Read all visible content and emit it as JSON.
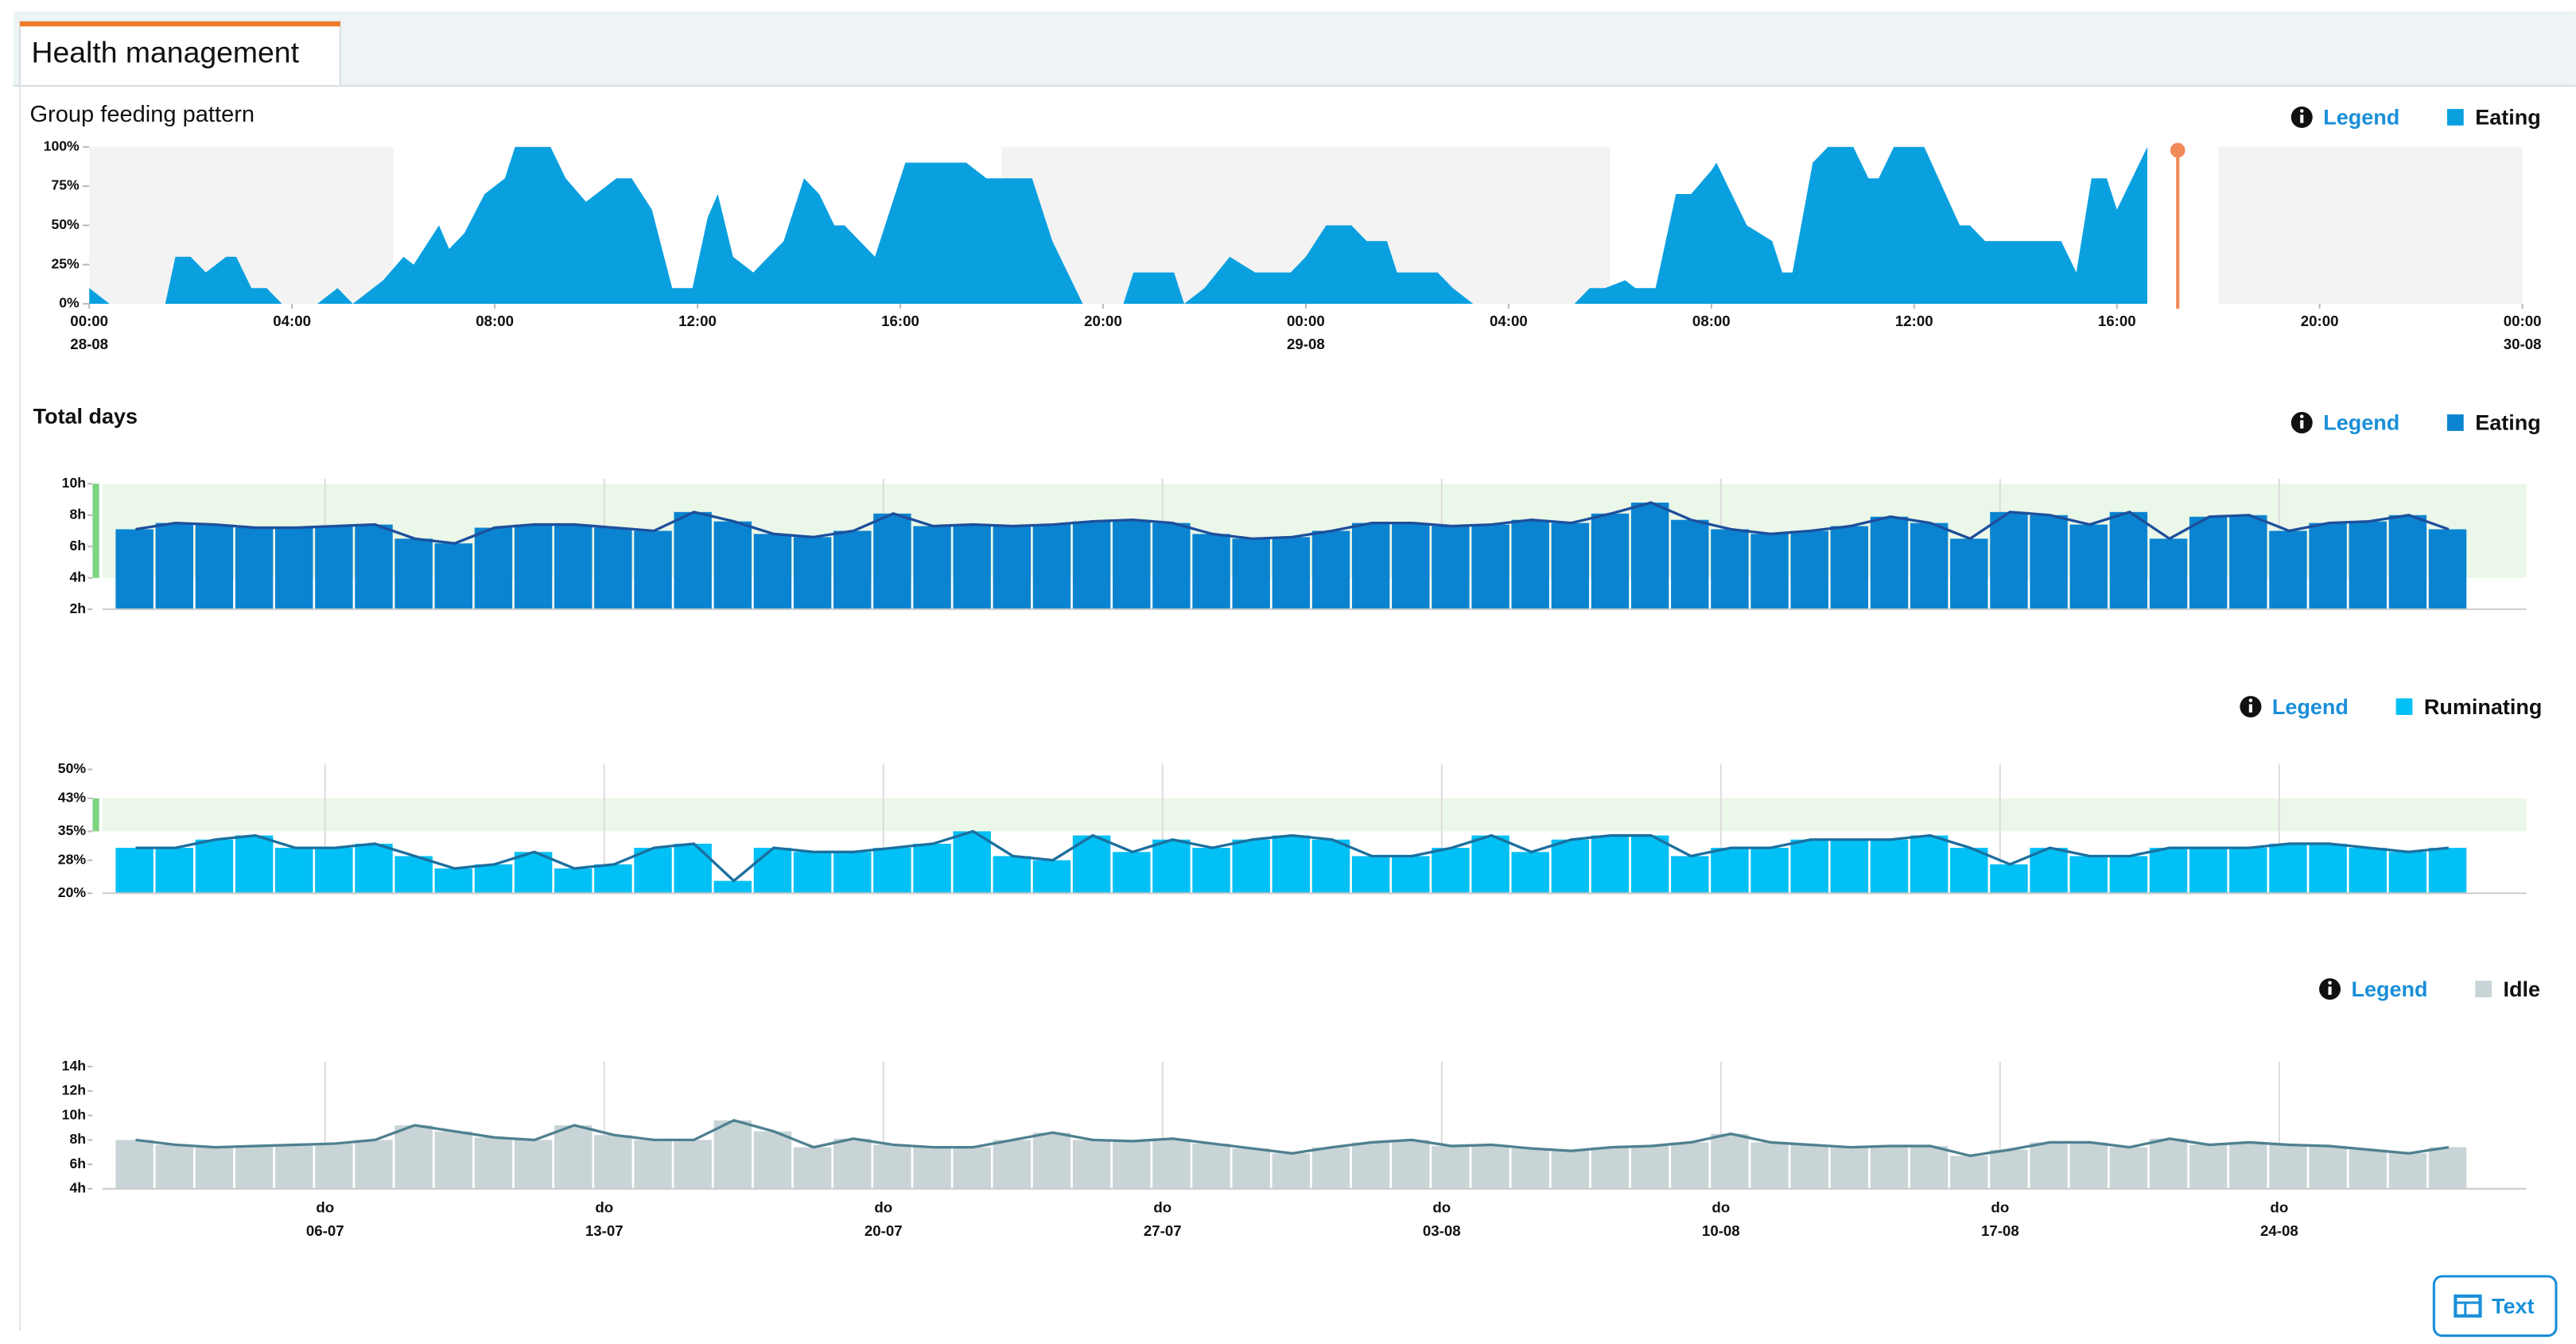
{
  "tab": "Health management",
  "button": "Text",
  "chart_data": [
    {
      "type": "area",
      "title": "Group feeding pattern",
      "legend_link": "Legend",
      "series": [
        {
          "name": "Eating",
          "color": "#0aa0e0",
          "x": [
            0,
            0.4,
            1.5,
            1.7,
            2.0,
            2.3,
            2.7,
            2.9,
            3.2,
            3.5,
            3.8,
            4.5,
            4.9,
            5.2,
            5.8,
            6.2,
            6.4,
            6.7,
            6.9,
            7.1,
            7.4,
            7.8,
            8.2,
            8.4,
            9.1,
            9.4,
            9.8,
            10.4,
            10.7,
            11.1,
            11.5,
            11.9,
            12.2,
            12.4,
            12.7,
            13.1,
            13.4,
            13.7,
            14.1,
            14.4,
            14.7,
            14.9,
            15.5,
            16.1,
            17.3,
            17.7,
            18.6,
            19.0,
            19.3,
            19.6,
            20.4,
            20.6,
            21.4,
            21.6,
            22.0,
            22.5,
            23.0,
            23.7,
            24.0,
            24.4,
            24.9,
            25.2,
            25.6,
            25.8,
            26.6,
            26.9,
            27.3,
            29.3,
            29.6,
            29.9,
            30.3,
            30.5,
            30.9,
            31.3,
            31.6,
            32.0,
            32.1,
            32.4,
            32.7,
            33.2,
            33.4,
            33.6,
            34.0,
            34.3,
            34.8,
            35.1,
            35.3,
            35.6,
            36.2,
            36.9,
            37.1,
            37.4,
            38.9,
            39.2,
            39.5,
            39.8,
            40.0,
            40.3,
            40.6
          ],
          "values": [
            10,
            0,
            0,
            30,
            30,
            20,
            30,
            30,
            10,
            10,
            0,
            0,
            10,
            0,
            15,
            30,
            25,
            40,
            50,
            35,
            45,
            70,
            80,
            100,
            100,
            80,
            65,
            80,
            80,
            60,
            10,
            10,
            55,
            70,
            30,
            20,
            30,
            40,
            80,
            70,
            50,
            50,
            30,
            90,
            90,
            80,
            80,
            40,
            20,
            0,
            0,
            20,
            20,
            0,
            10,
            30,
            20,
            20,
            30,
            50,
            50,
            40,
            40,
            20,
            20,
            10,
            0,
            0,
            10,
            10,
            15,
            10,
            10,
            70,
            70,
            85,
            90,
            70,
            50,
            40,
            20,
            20,
            90,
            100,
            100,
            80,
            80,
            100,
            100,
            50,
            50,
            40,
            40,
            20,
            80,
            80,
            60,
            80,
            100
          ]
        }
      ],
      "xlim": [
        0,
        48
      ],
      "xticks": [
        {
          "value": 0,
          "label": "00:00",
          "date": "28-08"
        },
        {
          "value": 4,
          "label": "04:00"
        },
        {
          "value": 8,
          "label": "08:00"
        },
        {
          "value": 12,
          "label": "12:00"
        },
        {
          "value": 16,
          "label": "16:00"
        },
        {
          "value": 20,
          "label": "20:00"
        },
        {
          "value": 24,
          "label": "00:00",
          "date": "29-08"
        },
        {
          "value": 28,
          "label": "04:00"
        },
        {
          "value": 32,
          "label": "08:00"
        },
        {
          "value": 36,
          "label": "12:00"
        },
        {
          "value": 40,
          "label": "16:00"
        },
        {
          "value": 44,
          "label": "20:00"
        },
        {
          "value": 48,
          "label": "00:00",
          "date": "30-08"
        }
      ],
      "ylim": [
        0,
        100
      ],
      "yticks": [
        {
          "value": 100,
          "label": "100%"
        },
        {
          "value": 75,
          "label": "75%"
        },
        {
          "value": 50,
          "label": "50%"
        },
        {
          "value": 25,
          "label": "25%"
        },
        {
          "value": 0,
          "label": "0%"
        }
      ],
      "shaded_ranges": [
        [
          0,
          6
        ],
        [
          18,
          30
        ],
        [
          42,
          48
        ]
      ],
      "shade_color": "#f3f3f3",
      "marker": 41.2,
      "marker_color": "#f28a5a"
    },
    {
      "type": "bar_line",
      "title": "Total days",
      "legend_link": "Legend",
      "series": [
        {
          "name": "Eating",
          "color": "#0a84d0",
          "line_color": "#1d4f9c",
          "values": [
            7.1,
            7.5,
            7.4,
            7.2,
            7.2,
            7.3,
            7.4,
            6.5,
            6.2,
            7.2,
            7.4,
            7.4,
            7.2,
            7.0,
            8.2,
            7.6,
            6.8,
            6.6,
            7.0,
            8.1,
            7.3,
            7.4,
            7.3,
            7.4,
            7.6,
            7.7,
            7.5,
            6.8,
            6.5,
            6.6,
            7.0,
            7.5,
            7.5,
            7.3,
            7.4,
            7.7,
            7.5,
            8.1,
            8.8,
            7.7,
            7.1,
            6.8,
            7.0,
            7.3,
            7.9,
            7.5,
            6.5,
            8.2,
            8.0,
            7.4,
            8.2,
            6.5,
            7.9,
            8.0,
            7.0,
            7.5,
            7.6,
            8.0,
            7.1
          ]
        }
      ],
      "ylim": [
        2,
        10
      ],
      "yticks": [
        {
          "value": 10,
          "label": "10h"
        },
        {
          "value": 8,
          "label": "8h"
        },
        {
          "value": 6,
          "label": "6h"
        },
        {
          "value": 4,
          "label": "4h"
        },
        {
          "value": 2,
          "label": "2h"
        }
      ],
      "target_range": [
        4,
        10
      ]
    },
    {
      "type": "bar_line",
      "legend_link": "Legend",
      "series": [
        {
          "name": "Ruminating",
          "color": "#00c0f5",
          "line_color": "#1c6f9e",
          "values": [
            31,
            31,
            33,
            34,
            31,
            31,
            32,
            29,
            26,
            27,
            30,
            26,
            27,
            31,
            32,
            23,
            31,
            30,
            30,
            31,
            32,
            35,
            29,
            28,
            34,
            30,
            33,
            31,
            33,
            34,
            33,
            29,
            29,
            31,
            34,
            30,
            33,
            34,
            34,
            29,
            31,
            31,
            33,
            33,
            33,
            34,
            31,
            27,
            31,
            29,
            29,
            31,
            31,
            31,
            32,
            32,
            31,
            30,
            31
          ]
        }
      ],
      "ylim": [
        20,
        50
      ],
      "yticks": [
        {
          "value": 50,
          "label": "50%"
        },
        {
          "value": 43,
          "label": "43%"
        },
        {
          "value": 35,
          "label": "35%"
        },
        {
          "value": 28,
          "label": "28%"
        },
        {
          "value": 20,
          "label": "20%"
        }
      ],
      "target_range": [
        35,
        43
      ]
    },
    {
      "type": "bar_line",
      "legend_link": "Legend",
      "series": [
        {
          "name": "Idle",
          "color": "#c9d4d7",
          "line_color": "#4f8190",
          "values": [
            8.0,
            7.6,
            7.4,
            7.5,
            7.6,
            7.7,
            8.0,
            9.2,
            8.7,
            8.2,
            8.0,
            9.2,
            8.4,
            8.0,
            8.0,
            9.6,
            8.7,
            7.4,
            8.1,
            7.6,
            7.4,
            7.4,
            8.0,
            8.6,
            8.0,
            7.9,
            8.1,
            7.7,
            7.3,
            6.9,
            7.4,
            7.8,
            8.0,
            7.5,
            7.6,
            7.3,
            7.1,
            7.4,
            7.5,
            7.8,
            8.5,
            7.8,
            7.6,
            7.4,
            7.5,
            7.5,
            6.7,
            7.2,
            7.8,
            7.8,
            7.4,
            8.1,
            7.6,
            7.8,
            7.6,
            7.5,
            7.2,
            6.9,
            7.4
          ]
        }
      ],
      "ylim": [
        4,
        14
      ],
      "yticks": [
        {
          "value": 14,
          "label": "14h"
        },
        {
          "value": 12,
          "label": "12h"
        },
        {
          "value": 10,
          "label": "10h"
        },
        {
          "value": 8,
          "label": "8h"
        },
        {
          "value": 6,
          "label": "6h"
        },
        {
          "value": 4,
          "label": "4h"
        }
      ],
      "weekday": "do",
      "categories": [
        null,
        null,
        null,
        null,
        null,
        "06-07",
        null,
        null,
        null,
        null,
        null,
        null,
        "13-07",
        null,
        null,
        null,
        null,
        null,
        null,
        "20-07",
        null,
        null,
        null,
        null,
        null,
        null,
        "27-07",
        null,
        null,
        null,
        null,
        null,
        null,
        "03-08",
        null,
        null,
        null,
        null,
        null,
        null,
        "10-08",
        null,
        null,
        null,
        null,
        null,
        null,
        "17-08",
        null,
        null,
        null,
        null,
        null,
        null,
        "24-08",
        null,
        null,
        null,
        null
      ]
    }
  ]
}
